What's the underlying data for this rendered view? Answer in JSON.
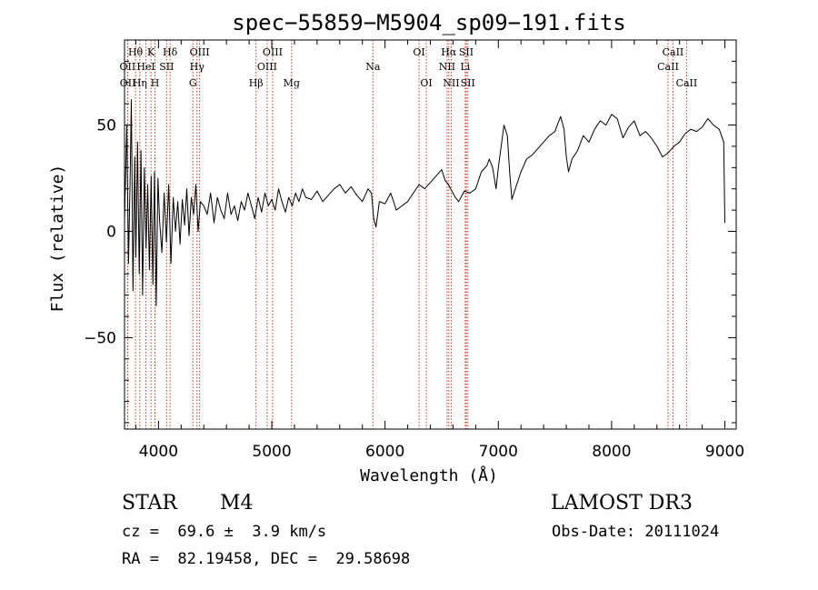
{
  "chart_data": {
    "type": "line",
    "title": "spec−55859−M5904_sp09−191.fits",
    "xlabel": "Wavelength (Å)",
    "ylabel": "Flux (relative)",
    "xlim": [
      3700,
      9100
    ],
    "ylim": [
      -93,
      90
    ],
    "x_ticks": [
      4000,
      5000,
      6000,
      7000,
      8000,
      9000
    ],
    "x_tick_labels": [
      "4000",
      "5000",
      "6000",
      "7000",
      "8000",
      "9000"
    ],
    "y_ticks": [
      -50,
      0,
      50
    ],
    "y_tick_labels": [
      "−50",
      "0",
      "50"
    ],
    "series": [
      {
        "name": "flux",
        "x": [
          3700,
          3720,
          3735,
          3750,
          3760,
          3775,
          3790,
          3800,
          3815,
          3830,
          3845,
          3860,
          3875,
          3890,
          3905,
          3920,
          3935,
          3950,
          3965,
          3980,
          3995,
          4010,
          4030,
          4050,
          4070,
          4090,
          4110,
          4130,
          4150,
          4170,
          4190,
          4210,
          4230,
          4250,
          4270,
          4290,
          4310,
          4330,
          4350,
          4370,
          4400,
          4430,
          4460,
          4490,
          4520,
          4550,
          4580,
          4610,
          4640,
          4670,
          4700,
          4730,
          4760,
          4790,
          4820,
          4850,
          4880,
          4910,
          4940,
          4970,
          5000,
          5030,
          5060,
          5090,
          5120,
          5150,
          5180,
          5210,
          5240,
          5270,
          5300,
          5350,
          5400,
          5450,
          5500,
          5550,
          5600,
          5650,
          5700,
          5750,
          5800,
          5850,
          5880,
          5900,
          5920,
          5950,
          6000,
          6050,
          6100,
          6150,
          6200,
          6250,
          6300,
          6350,
          6400,
          6450,
          6500,
          6530,
          6560,
          6580,
          6600,
          6620,
          6650,
          6700,
          6750,
          6800,
          6850,
          6900,
          6920,
          6950,
          6980,
          7000,
          7020,
          7050,
          7080,
          7100,
          7120,
          7150,
          7200,
          7250,
          7300,
          7350,
          7400,
          7450,
          7500,
          7550,
          7580,
          7600,
          7620,
          7650,
          7700,
          7750,
          7800,
          7850,
          7900,
          7950,
          8000,
          8050,
          8100,
          8150,
          8200,
          8250,
          8300,
          8350,
          8400,
          8450,
          8500,
          8550,
          8600,
          8650,
          8700,
          8750,
          8800,
          8850,
          8900,
          8950,
          8990,
          9000
        ],
        "values": [
          5,
          50,
          -15,
          25,
          62,
          -28,
          35,
          -12,
          42,
          -20,
          38,
          -30,
          30,
          -8,
          22,
          -18,
          26,
          -25,
          28,
          -35,
          25,
          5,
          -10,
          18,
          -5,
          22,
          -15,
          16,
          0,
          14,
          -6,
          15,
          3,
          20,
          -2,
          16,
          8,
          22,
          0,
          14,
          12,
          8,
          18,
          4,
          16,
          10,
          6,
          18,
          8,
          12,
          5,
          14,
          10,
          18,
          12,
          6,
          16,
          9,
          18,
          12,
          15,
          10,
          20,
          14,
          9,
          16,
          12,
          18,
          14,
          20,
          16,
          15,
          19,
          14,
          17,
          20,
          22,
          18,
          21,
          17,
          14,
          20,
          18,
          6,
          2,
          14,
          13,
          18,
          10,
          12,
          14,
          18,
          22,
          20,
          23,
          26,
          29,
          24,
          22,
          20,
          18,
          16,
          14,
          19,
          18,
          20,
          28,
          31,
          34,
          30,
          20,
          30,
          38,
          50,
          45,
          28,
          15,
          20,
          28,
          34,
          36,
          39,
          42,
          45,
          47,
          54,
          48,
          35,
          28,
          34,
          38,
          45,
          42,
          48,
          52,
          50,
          55,
          53,
          44,
          49,
          52,
          45,
          47,
          44,
          40,
          35,
          37,
          40,
          42,
          46,
          48,
          47,
          49,
          53,
          50,
          48,
          42,
          4
        ]
      }
    ],
    "lines": [
      {
        "label": "Hθ",
        "x": 3797,
        "row": 1
      },
      {
        "label": "OII",
        "x": 3727,
        "row": 2
      },
      {
        "label": "OII",
        "x": 3729,
        "row": 3
      },
      {
        "label": "K",
        "x": 3934,
        "row": 1
      },
      {
        "label": "HeI",
        "x": 3889,
        "row": 2
      },
      {
        "label": "Hη",
        "x": 3835,
        "row": 3
      },
      {
        "label": "Hδ",
        "x": 4102,
        "row": 1
      },
      {
        "label": "SII",
        "x": 4072,
        "row": 2
      },
      {
        "label": "H",
        "x": 3969,
        "row": 3
      },
      {
        "label": "OIII",
        "x": 4363,
        "row": 1
      },
      {
        "label": "Hγ",
        "x": 4340,
        "row": 2
      },
      {
        "label": "G",
        "x": 4304,
        "row": 3
      },
      {
        "label": "Hβ",
        "x": 4861,
        "row": 3
      },
      {
        "label": "OIII",
        "x": 5007,
        "row": 1
      },
      {
        "label": "OIII",
        "x": 4959,
        "row": 2
      },
      {
        "label": "Mg",
        "x": 5175,
        "row": 3
      },
      {
        "label": "Na",
        "x": 5893,
        "row": 2
      },
      {
        "label": "OI",
        "x": 6300,
        "row": 1
      },
      {
        "label": "OI",
        "x": 6364,
        "row": 3
      },
      {
        "label": "Hα",
        "x": 6563,
        "row": 1
      },
      {
        "label": "NII",
        "x": 6548,
        "row": 2
      },
      {
        "label": "NII",
        "x": 6584,
        "row": 3
      },
      {
        "label": "SII",
        "x": 6717,
        "row": 1
      },
      {
        "label": "Li",
        "x": 6708,
        "row": 2
      },
      {
        "label": "SII",
        "x": 6731,
        "row": 3
      },
      {
        "label": "CaII",
        "x": 8542,
        "row": 1
      },
      {
        "label": "CaII",
        "x": 8498,
        "row": 2
      },
      {
        "label": "CaII",
        "x": 8662,
        "row": 3
      }
    ]
  },
  "info": {
    "object_class": "STAR",
    "subclass": "M4",
    "survey": "LAMOST DR3",
    "redshift": "cz =  69.6 ±  3.9 km/s",
    "obs_date": "Obs-Date: 20111024",
    "coords": "RA =  82.19458, DEC =  29.58698"
  }
}
